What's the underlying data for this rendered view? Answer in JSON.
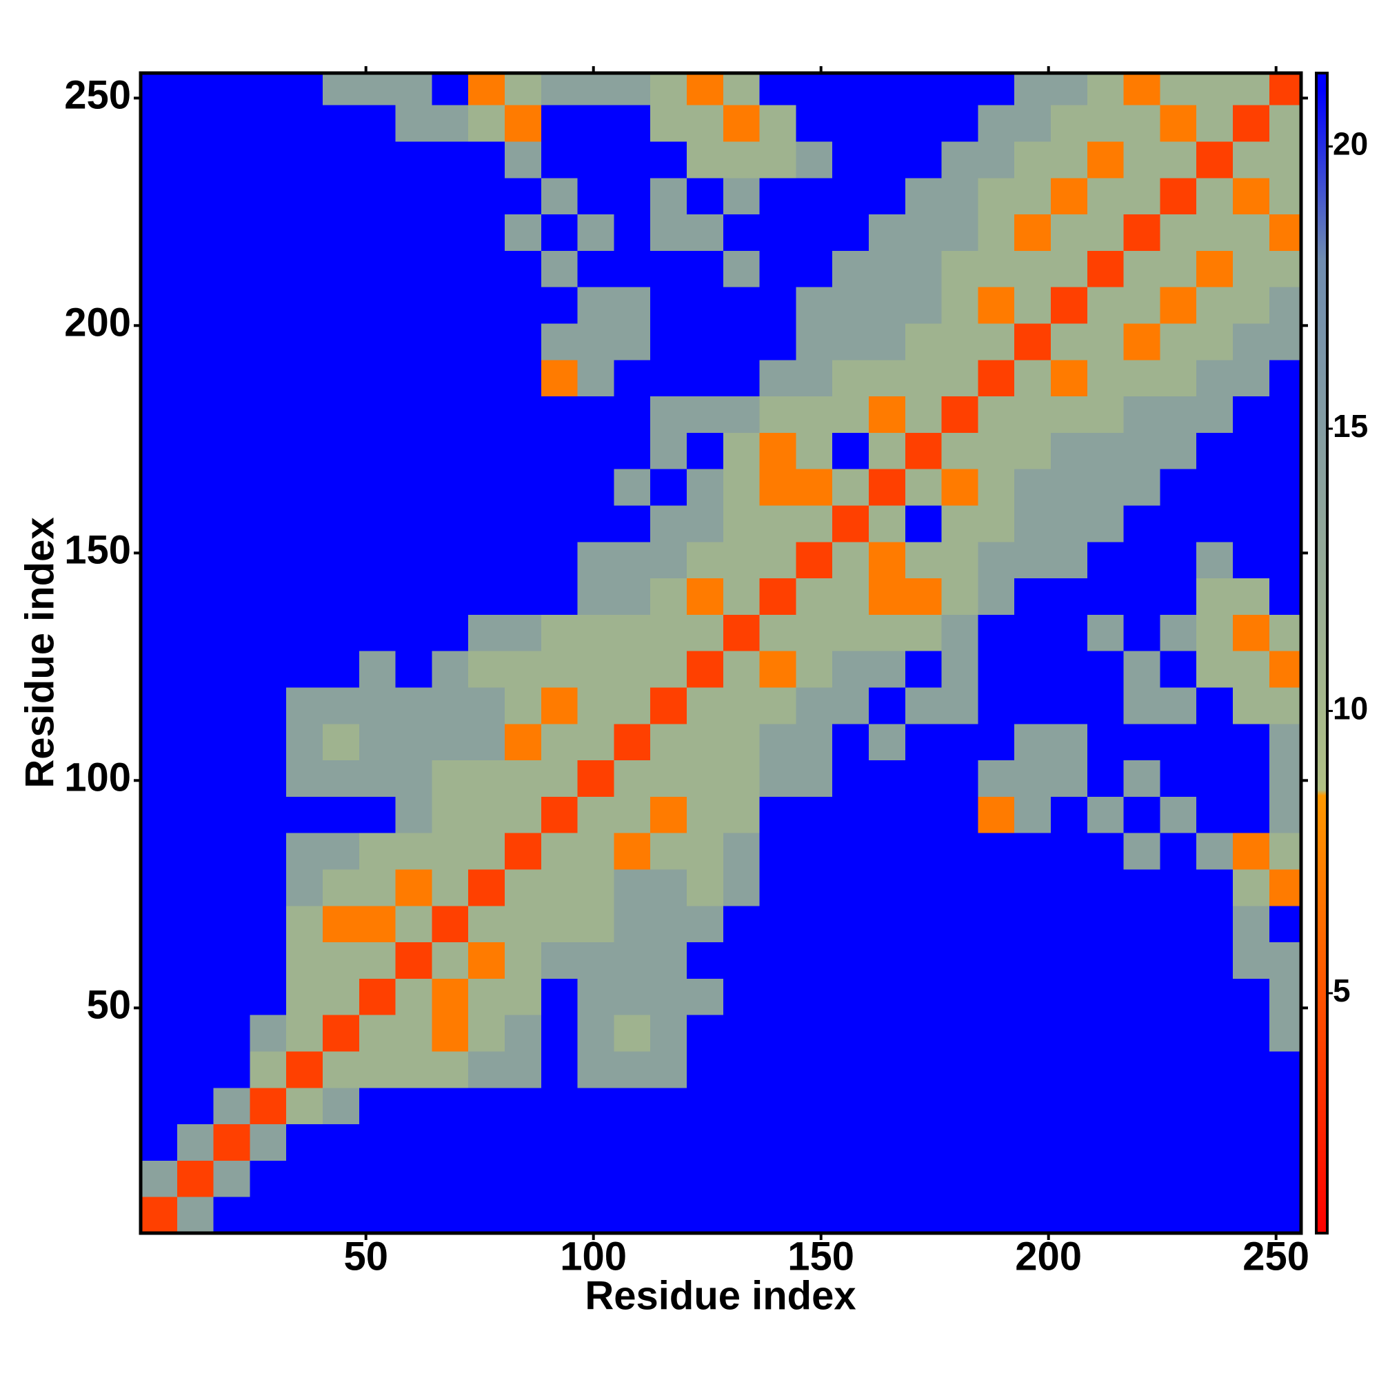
{
  "chart_data": {
    "type": "heatmap",
    "xlabel": "Residue index",
    "ylabel": "Residue index",
    "xlim": [
      0.5,
      255.5
    ],
    "ylim": [
      0.5,
      255.5
    ],
    "xticks": [
      50,
      100,
      150,
      200,
      250
    ],
    "yticks": [
      50,
      100,
      150,
      200,
      250
    ],
    "xbins": [
      0.5,
      8.5,
      16.5,
      24.5,
      32.5,
      40.5,
      48.5,
      56.5,
      64.5,
      72.5,
      80.5,
      88.5,
      96.5,
      104.5,
      112.5,
      120.5,
      128.5,
      136.5,
      144.5,
      152.5,
      160.5,
      168.5,
      176.5,
      184.5,
      192.5,
      200.5,
      208.5,
      216.5,
      224.5,
      232.5,
      240.5,
      248.5,
      255.5
    ],
    "ybins": [
      0.5,
      8.5,
      16.5,
      24.5,
      32.5,
      40.5,
      48.5,
      56.5,
      64.5,
      72.5,
      80.5,
      88.5,
      96.5,
      104.5,
      112.5,
      120.5,
      128.5,
      136.5,
      144.5,
      152.5,
      160.5,
      168.5,
      176.5,
      184.5,
      192.5,
      200.5,
      208.5,
      216.5,
      224.5,
      232.5,
      240.5,
      248.5,
      255.5
    ],
    "zlim": [
      0.75,
      21.3
    ],
    "zticks": [
      5,
      10,
      15,
      20
    ],
    "colorscale": [
      [
        0.75,
        "#ff0000"
      ],
      [
        8.5,
        "#ff9900"
      ],
      [
        8.6,
        "#b0c084"
      ],
      [
        18,
        "#6f8cb0"
      ],
      [
        21,
        "#0000ff"
      ]
    ],
    "z": [
      [
        4,
        14,
        21,
        21,
        21,
        21,
        21,
        21,
        21,
        21,
        21,
        21,
        21,
        21,
        21,
        21,
        21,
        21,
        21,
        21,
        21,
        21,
        21,
        21,
        21,
        21,
        21,
        21,
        21,
        21,
        21,
        21
      ],
      [
        14,
        4,
        14,
        21,
        21,
        21,
        21,
        21,
        21,
        21,
        21,
        21,
        21,
        21,
        21,
        21,
        21,
        21,
        21,
        21,
        21,
        21,
        21,
        21,
        21,
        21,
        21,
        21,
        21,
        21,
        21,
        21
      ],
      [
        21,
        14,
        4,
        14,
        21,
        21,
        21,
        21,
        21,
        21,
        21,
        21,
        21,
        21,
        21,
        21,
        21,
        21,
        21,
        21,
        21,
        21,
        21,
        21,
        21,
        21,
        21,
        21,
        21,
        21,
        21,
        21
      ],
      [
        21,
        21,
        14,
        4,
        11,
        14,
        21,
        21,
        21,
        21,
        21,
        21,
        21,
        21,
        21,
        21,
        21,
        21,
        21,
        21,
        21,
        21,
        21,
        21,
        21,
        21,
        21,
        21,
        21,
        21,
        21,
        21
      ],
      [
        21,
        21,
        21,
        11,
        4,
        11,
        11,
        11,
        11,
        14,
        14,
        21,
        14,
        14,
        14,
        21,
        21,
        21,
        21,
        21,
        21,
        21,
        21,
        21,
        21,
        21,
        21,
        21,
        21,
        21,
        21,
        21
      ],
      [
        21,
        21,
        21,
        14,
        11,
        4,
        11,
        11,
        7,
        11,
        14,
        21,
        14,
        11,
        14,
        21,
        21,
        21,
        21,
        21,
        21,
        21,
        21,
        21,
        21,
        21,
        21,
        21,
        21,
        21,
        21,
        14
      ],
      [
        21,
        21,
        21,
        21,
        11,
        11,
        4,
        11,
        7,
        11,
        11,
        21,
        14,
        14,
        14,
        14,
        21,
        21,
        21,
        21,
        21,
        21,
        21,
        21,
        21,
        21,
        21,
        21,
        21,
        21,
        21,
        14
      ],
      [
        21,
        21,
        21,
        21,
        11,
        11,
        11,
        4,
        11,
        7,
        11,
        14,
        14,
        14,
        14,
        21,
        21,
        21,
        21,
        21,
        21,
        21,
        21,
        21,
        21,
        21,
        21,
        21,
        21,
        21,
        14,
        14
      ],
      [
        21,
        21,
        21,
        21,
        11,
        7,
        7,
        11,
        4,
        11,
        11,
        11,
        11,
        14,
        14,
        14,
        21,
        21,
        21,
        21,
        21,
        21,
        21,
        21,
        21,
        21,
        21,
        21,
        21,
        21,
        14,
        21
      ],
      [
        21,
        21,
        21,
        21,
        14,
        11,
        11,
        7,
        11,
        4,
        11,
        11,
        11,
        14,
        14,
        11,
        14,
        21,
        21,
        21,
        21,
        21,
        21,
        21,
        21,
        21,
        21,
        21,
        21,
        21,
        11,
        7
      ],
      [
        21,
        21,
        21,
        21,
        14,
        14,
        11,
        11,
        11,
        11,
        4,
        11,
        11,
        7,
        11,
        11,
        14,
        21,
        21,
        21,
        21,
        21,
        21,
        21,
        21,
        21,
        21,
        14,
        21,
        14,
        7,
        11
      ],
      [
        21,
        21,
        21,
        21,
        21,
        21,
        21,
        14,
        11,
        11,
        11,
        4,
        11,
        11,
        7,
        11,
        11,
        21,
        21,
        21,
        21,
        21,
        21,
        7,
        14,
        21,
        14,
        21,
        14,
        21,
        21,
        14
      ],
      [
        21,
        21,
        21,
        21,
        14,
        14,
        14,
        14,
        11,
        11,
        11,
        11,
        4,
        11,
        11,
        11,
        11,
        14,
        14,
        21,
        21,
        21,
        21,
        14,
        14,
        14,
        21,
        14,
        21,
        21,
        21,
        14
      ],
      [
        21,
        21,
        21,
        21,
        14,
        11,
        14,
        14,
        14,
        14,
        7,
        11,
        11,
        4,
        11,
        11,
        11,
        14,
        14,
        21,
        14,
        21,
        21,
        21,
        14,
        14,
        21,
        21,
        21,
        21,
        21,
        14
      ],
      [
        21,
        21,
        21,
        21,
        14,
        14,
        14,
        14,
        14,
        14,
        11,
        7,
        11,
        11,
        4,
        11,
        11,
        11,
        14,
        14,
        21,
        14,
        14,
        21,
        21,
        21,
        21,
        14,
        14,
        21,
        11,
        11
      ],
      [
        21,
        21,
        21,
        21,
        21,
        21,
        14,
        21,
        14,
        11,
        11,
        11,
        11,
        11,
        11,
        4,
        11,
        7,
        11,
        14,
        14,
        21,
        14,
        21,
        21,
        21,
        21,
        14,
        21,
        11,
        11,
        7
      ],
      [
        21,
        21,
        21,
        21,
        21,
        21,
        21,
        21,
        21,
        14,
        14,
        11,
        11,
        11,
        11,
        11,
        4,
        11,
        11,
        11,
        11,
        11,
        14,
        21,
        21,
        21,
        14,
        21,
        14,
        11,
        7,
        11
      ],
      [
        21,
        21,
        21,
        21,
        21,
        21,
        21,
        21,
        21,
        21,
        21,
        21,
        14,
        14,
        11,
        7,
        11,
        4,
        11,
        11,
        7,
        7,
        11,
        14,
        21,
        21,
        21,
        21,
        21,
        11,
        11,
        21
      ],
      [
        21,
        21,
        21,
        21,
        21,
        21,
        21,
        21,
        21,
        21,
        21,
        21,
        14,
        14,
        14,
        11,
        11,
        11,
        4,
        11,
        7,
        11,
        11,
        14,
        14,
        14,
        21,
        21,
        21,
        14,
        21,
        21
      ],
      [
        21,
        21,
        21,
        21,
        21,
        21,
        21,
        21,
        21,
        21,
        21,
        21,
        21,
        21,
        14,
        14,
        11,
        11,
        11,
        4,
        11,
        21,
        11,
        11,
        14,
        14,
        14,
        21,
        21,
        21,
        21,
        21
      ],
      [
        21,
        21,
        21,
        21,
        21,
        21,
        21,
        21,
        21,
        21,
        21,
        21,
        21,
        14,
        21,
        14,
        11,
        7,
        7,
        11,
        4,
        11,
        7,
        11,
        14,
        14,
        14,
        14,
        21,
        21,
        21,
        21
      ],
      [
        21,
        21,
        21,
        21,
        21,
        21,
        21,
        21,
        21,
        21,
        21,
        21,
        21,
        21,
        14,
        21,
        11,
        7,
        11,
        21,
        11,
        4,
        11,
        11,
        11,
        14,
        14,
        14,
        14,
        21,
        21,
        21
      ],
      [
        21,
        21,
        21,
        21,
        21,
        21,
        21,
        21,
        21,
        21,
        21,
        21,
        21,
        21,
        14,
        14,
        14,
        11,
        11,
        11,
        7,
        11,
        4,
        11,
        11,
        11,
        11,
        14,
        14,
        14,
        21,
        21
      ],
      [
        21,
        21,
        21,
        21,
        21,
        21,
        21,
        21,
        21,
        21,
        21,
        7,
        14,
        21,
        21,
        21,
        21,
        14,
        14,
        11,
        11,
        11,
        11,
        4,
        11,
        7,
        11,
        11,
        11,
        14,
        14,
        21
      ],
      [
        21,
        21,
        21,
        21,
        21,
        21,
        21,
        21,
        21,
        21,
        21,
        14,
        14,
        14,
        21,
        21,
        21,
        21,
        14,
        14,
        14,
        11,
        11,
        11,
        4,
        11,
        11,
        7,
        11,
        11,
        14,
        14
      ],
      [
        21,
        21,
        21,
        21,
        21,
        21,
        21,
        21,
        21,
        21,
        21,
        21,
        14,
        14,
        21,
        21,
        21,
        21,
        14,
        14,
        14,
        14,
        11,
        7,
        11,
        4,
        11,
        11,
        7,
        11,
        11,
        14
      ],
      [
        21,
        21,
        21,
        21,
        21,
        21,
        21,
        21,
        21,
        21,
        21,
        14,
        21,
        21,
        21,
        21,
        14,
        21,
        21,
        14,
        14,
        14,
        11,
        11,
        11,
        11,
        4,
        11,
        11,
        7,
        11,
        11
      ],
      [
        21,
        21,
        21,
        21,
        21,
        21,
        21,
        21,
        21,
        21,
        14,
        21,
        14,
        21,
        14,
        14,
        21,
        21,
        21,
        21,
        14,
        14,
        14,
        11,
        7,
        11,
        11,
        4,
        11,
        11,
        11,
        7
      ],
      [
        21,
        21,
        21,
        21,
        21,
        21,
        21,
        21,
        21,
        21,
        21,
        14,
        21,
        21,
        14,
        21,
        14,
        21,
        21,
        21,
        21,
        14,
        14,
        11,
        11,
        7,
        11,
        11,
        4,
        11,
        7,
        11
      ],
      [
        21,
        21,
        21,
        21,
        21,
        21,
        21,
        21,
        21,
        21,
        14,
        21,
        21,
        21,
        21,
        11,
        11,
        11,
        14,
        21,
        21,
        21,
        14,
        14,
        11,
        11,
        7,
        11,
        11,
        4,
        11,
        11
      ],
      [
        21,
        21,
        21,
        21,
        21,
        21,
        21,
        14,
        14,
        11,
        7,
        21,
        21,
        21,
        11,
        11,
        7,
        11,
        21,
        21,
        21,
        21,
        21,
        14,
        14,
        11,
        11,
        11,
        7,
        11,
        4,
        11
      ],
      [
        21,
        21,
        21,
        21,
        21,
        14,
        14,
        14,
        21,
        7,
        11,
        14,
        14,
        14,
        11,
        7,
        11,
        21,
        21,
        21,
        21,
        21,
        21,
        21,
        14,
        14,
        11,
        7,
        11,
        11,
        11,
        4
      ]
    ]
  }
}
